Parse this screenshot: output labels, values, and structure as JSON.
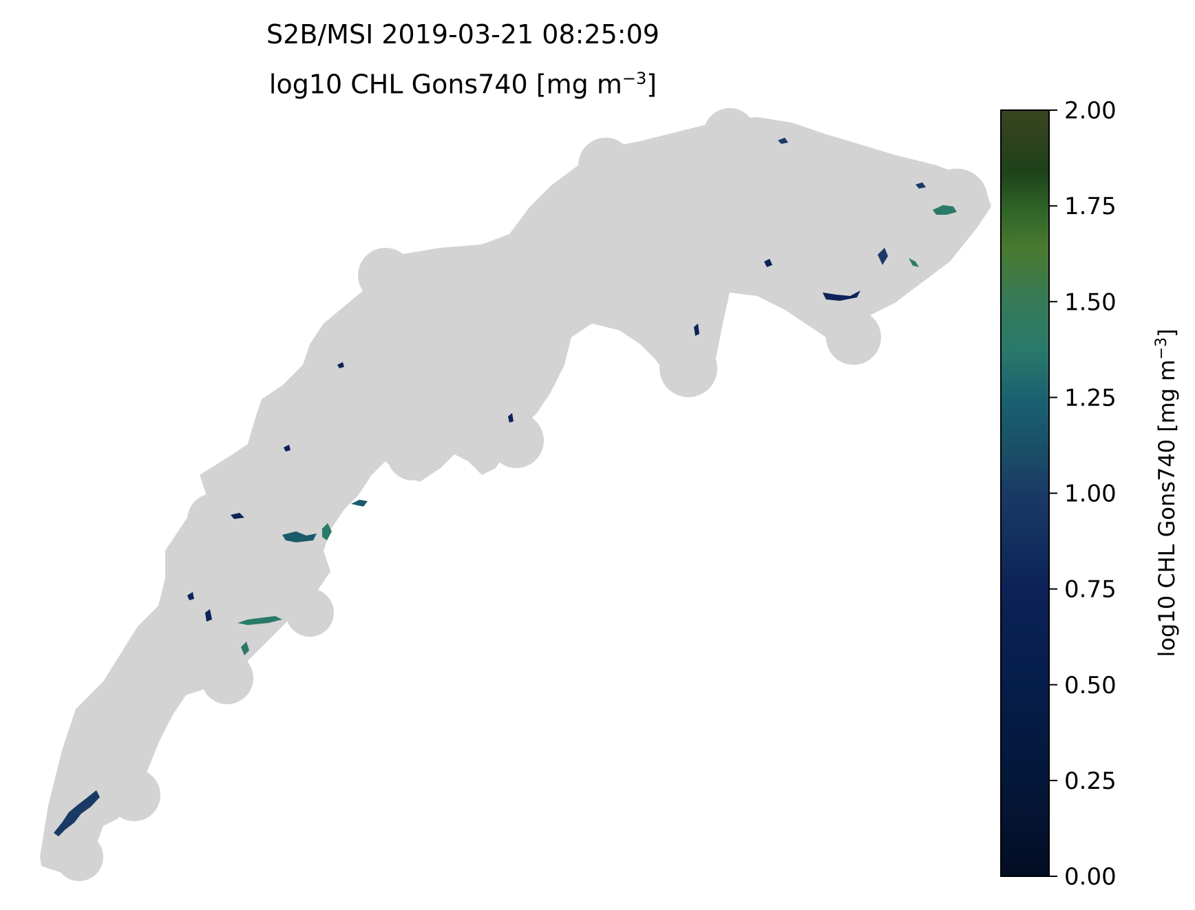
{
  "title": {
    "line1": "S2B/MSI 2019-03-21 08:25:09",
    "line2_main": "log10 CHL Gons740 [mg m",
    "line2_sup": "−3",
    "line2_end": "]"
  },
  "map": {
    "land_color": "#d3d3d3",
    "background_color": "#ffffff",
    "water_pixels": [
      {
        "lat_pos": "southwest lake",
        "value": 0.75
      },
      {
        "lat_pos": "central patches",
        "value": 1.15
      },
      {
        "lat_pos": "northeast lake",
        "value": 1.4
      }
    ]
  },
  "colorbar": {
    "label_main": "log10 CHL Gons740 [mg m",
    "label_sup": "−3",
    "label_end": "]",
    "min": 0.0,
    "max": 2.0,
    "ticks": [
      "0.00",
      "0.25",
      "0.50",
      "0.75",
      "1.00",
      "1.25",
      "1.50",
      "1.75",
      "2.00"
    ],
    "colormap_stops": [
      "#030d24",
      "#041a46",
      "#0c2255",
      "#1a3a66",
      "#1a5a6a",
      "#2a7a6a",
      "#3a7a50",
      "#4a7a30",
      "#1e3f1a",
      "#3a4420"
    ]
  }
}
